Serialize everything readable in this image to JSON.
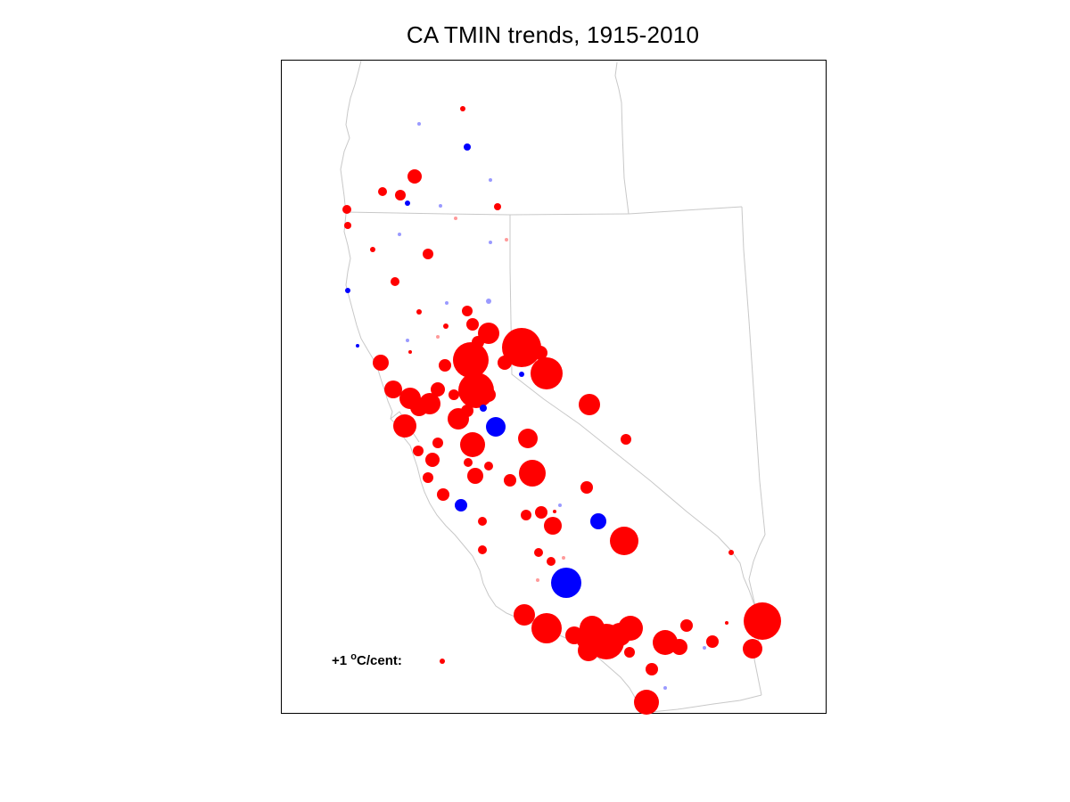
{
  "title": "CA TMIN trends, 1915-2010",
  "legend": {
    "prefix": "+1 ",
    "degree": "o",
    "unit": "C/cent:",
    "reference_trend": 1
  },
  "colors": {
    "warming": "#ff0000",
    "warming_light": "#ff9a9a",
    "cooling": "#0000ff",
    "cooling_light": "#9a9aff",
    "border": "#c8c8c8",
    "frame": "#000000"
  },
  "chart_data": {
    "type": "scatter",
    "encoding": "bubble size ∝ |TMIN trend|; red = positive trend, blue = negative trend; light shade = small trend",
    "stations": [
      {
        "lon": -123.88,
        "lat": 42.1,
        "trend": 0.5
      },
      {
        "lon": -124.15,
        "lat": 42.58,
        "trend": 0.4
      },
      {
        "lon": -123.18,
        "lat": 42.0,
        "trend": -1.0
      },
      {
        "lon": -124.0,
        "lat": 41.5,
        "trend": -0.5
      },
      {
        "lon": -123.3,
        "lat": 42.78,
        "trend": 0.8
      },
      {
        "lon": -124.2,
        "lat": 41.18,
        "trend": 0.6
      },
      {
        "lon": -124.1,
        "lat": 42.36,
        "trend": 1.8
      },
      {
        "lon": -124.2,
        "lat": 41.88,
        "trend": 1.0
      },
      {
        "lon": -123.93,
        "lat": 41.99,
        "trend": 1.4
      },
      {
        "lon": -124.6,
        "lat": 41.56,
        "trend": 1.0
      },
      {
        "lon": -124.4,
        "lat": 41.75,
        "trend": 0.9
      },
      {
        "lon": -123.7,
        "lat": 41.9,
        "trend": 1.3
      },
      {
        "lon": -123.75,
        "lat": 43.2,
        "trend": 0.8
      }
    ],
    "sample_rendered_as_figure": true
  }
}
